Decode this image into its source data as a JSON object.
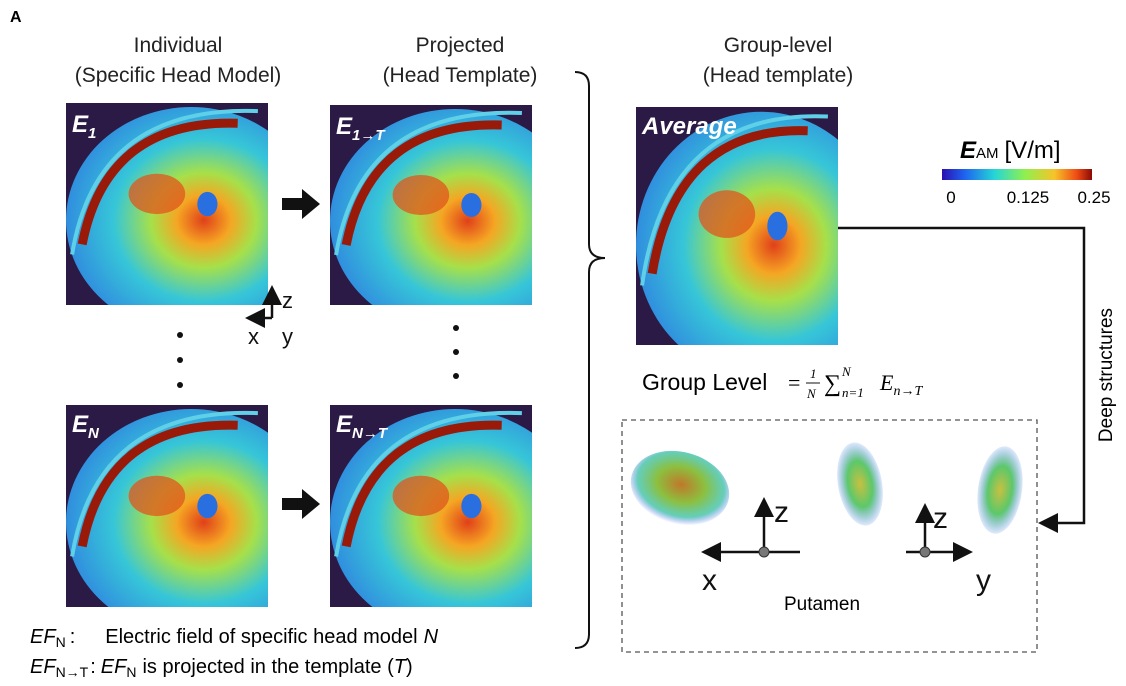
{
  "panel_label": "A",
  "columns": [
    {
      "title": "Individual",
      "subtitle": "(Specific Head Model)"
    },
    {
      "title": "Projected",
      "subtitle": "(Head Template)"
    },
    {
      "title": "Group-level",
      "subtitle": "(Head template)"
    }
  ],
  "images": [
    {
      "symbol": "E",
      "subscript": "1"
    },
    {
      "symbol": "E",
      "subscript": "1→T"
    },
    {
      "label": "Average"
    },
    {
      "symbol": "E",
      "subscript": "N"
    },
    {
      "symbol": "E",
      "subscript": "N→T"
    }
  ],
  "colorbar": {
    "symbol": "E",
    "subscript": "AM",
    "unit": "[V/m]",
    "ticks": [
      0,
      0.125,
      0.25
    ]
  },
  "axes": {
    "individual": [
      "z",
      "x",
      "y"
    ],
    "putamen_left": [
      "z",
      "x"
    ],
    "putamen_right": [
      "z",
      "y"
    ]
  },
  "formula": {
    "label": "Group Level",
    "equals": "=",
    "numerator": "1",
    "denominator": "N",
    "sum": "∑",
    "lower": "n=1",
    "upper": "N",
    "term": "E",
    "term_sub": "n→T"
  },
  "side_label": "Deep structures",
  "box_label": "Putamen",
  "legend": [
    {
      "symbol": "EF",
      "subscript": "N",
      "colon": ":",
      "text": "Electric field of specific head model",
      "var": "N"
    },
    {
      "symbol": "EF",
      "subscript": "N→T",
      "colon": ":",
      "text_symbol": "EF",
      "text_sub": "N",
      "text": "is projected in the template (",
      "var": "T",
      "close": ")"
    }
  ]
}
